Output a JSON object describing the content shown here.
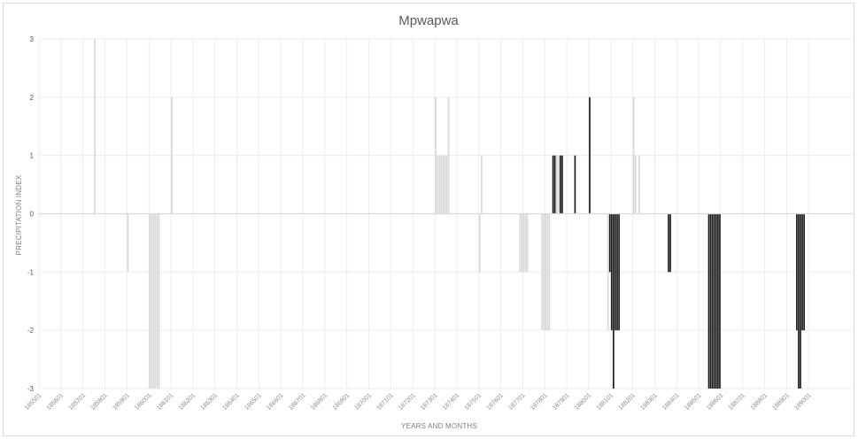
{
  "chart_data": {
    "type": "bar",
    "title": "Mpwapwa",
    "xlabel": "YEARS AND MONTHS",
    "ylabel": "PRECIPITATION INDEX",
    "ylim": [
      -3,
      3
    ],
    "yticks": [
      3,
      2,
      1,
      0,
      -1,
      -2,
      -3
    ],
    "grid": true,
    "legend": "none",
    "x_start": "185501",
    "x_end": "189112",
    "x_tick_labels": [
      "185501",
      "185601",
      "185701",
      "185801",
      "185901",
      "186001",
      "186101",
      "186201",
      "186301",
      "186401",
      "186501",
      "186601",
      "186701",
      "186801",
      "186901",
      "187001",
      "187101",
      "187201",
      "187301",
      "187401",
      "187501",
      "187601",
      "187701",
      "187801",
      "187901",
      "188001",
      "188101",
      "188201",
      "188301",
      "188401",
      "188501",
      "188601",
      "188701",
      "188801",
      "188901",
      "189001"
    ],
    "colors": {
      "light_bars": "#d9d9d9",
      "dark_bars": "#1a1a1a",
      "grid": "#ececec",
      "axis": "#d9d9d9"
    },
    "series": [
      {
        "tone": "light",
        "points": [
          {
            "x": "185707",
            "y": 3
          },
          {
            "x": "185901",
            "y": -1
          },
          {
            "x": "186001",
            "y": -3
          },
          {
            "x": "186002",
            "y": -3
          },
          {
            "x": "186003",
            "y": -3
          },
          {
            "x": "186004",
            "y": -3
          },
          {
            "x": "186005",
            "y": -3
          },
          {
            "x": "186006",
            "y": -3
          },
          {
            "x": "186101",
            "y": 2
          },
          {
            "x": "187301",
            "y": 2
          },
          {
            "x": "187302",
            "y": 1
          },
          {
            "x": "187303",
            "y": 1
          },
          {
            "x": "187304",
            "y": 1
          },
          {
            "x": "187305",
            "y": 1
          },
          {
            "x": "187306",
            "y": 1
          },
          {
            "x": "187307",
            "y": 1
          },
          {
            "x": "187308",
            "y": 2
          },
          {
            "x": "187501",
            "y": -1
          },
          {
            "x": "187502",
            "y": 1
          },
          {
            "x": "187611",
            "y": -1
          },
          {
            "x": "187612",
            "y": -1
          },
          {
            "x": "187701",
            "y": -1
          },
          {
            "x": "187702",
            "y": -1
          },
          {
            "x": "187703",
            "y": -1
          },
          {
            "x": "187711",
            "y": -2
          },
          {
            "x": "187712",
            "y": -2
          },
          {
            "x": "187801",
            "y": -2
          },
          {
            "x": "187802",
            "y": -2
          },
          {
            "x": "187803",
            "y": -2
          },
          {
            "x": "187806",
            "y": 1
          },
          {
            "x": "187807",
            "y": 1
          },
          {
            "x": "187808",
            "y": 1
          },
          {
            "x": "187809",
            "y": 1
          },
          {
            "x": "188011",
            "y": -2
          },
          {
            "x": "188012",
            "y": -1
          },
          {
            "x": "188101",
            "y": -1
          },
          {
            "x": "188102",
            "y": -1
          },
          {
            "x": "188201",
            "y": 2
          },
          {
            "x": "188202",
            "y": 1
          },
          {
            "x": "188204",
            "y": 1
          }
        ]
      },
      {
        "tone": "dark",
        "points": [
          {
            "x": "187805",
            "y": 1
          },
          {
            "x": "187806",
            "y": 1
          },
          {
            "x": "187809",
            "y": 1
          },
          {
            "x": "187810",
            "y": 1
          },
          {
            "x": "187905",
            "y": 1
          },
          {
            "x": "188001",
            "y": 2
          },
          {
            "x": "188012",
            "y": -1
          },
          {
            "x": "188101",
            "y": -2
          },
          {
            "x": "188102",
            "y": -3
          },
          {
            "x": "188103",
            "y": -2
          },
          {
            "x": "188104",
            "y": -2
          },
          {
            "x": "188105",
            "y": -2
          },
          {
            "x": "188308",
            "y": -1
          },
          {
            "x": "188309",
            "y": -1
          },
          {
            "x": "188506",
            "y": -3
          },
          {
            "x": "188507",
            "y": -3
          },
          {
            "x": "188508",
            "y": -3
          },
          {
            "x": "188509",
            "y": -3
          },
          {
            "x": "188510",
            "y": -3
          },
          {
            "x": "188511",
            "y": -3
          },
          {
            "x": "188512",
            "y": -3
          },
          {
            "x": "188906",
            "y": -2
          },
          {
            "x": "188907",
            "y": -3
          },
          {
            "x": "188908",
            "y": -3
          },
          {
            "x": "188909",
            "y": -2
          },
          {
            "x": "188910",
            "y": -2
          }
        ]
      }
    ]
  }
}
